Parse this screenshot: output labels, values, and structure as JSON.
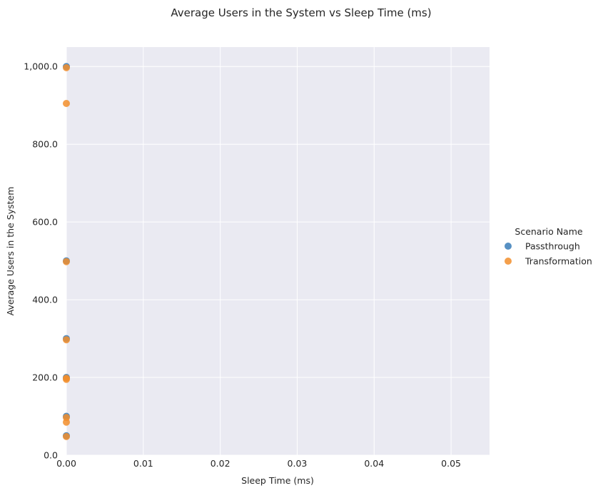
{
  "chart_data": {
    "type": "scatter",
    "title": "Average Users in the System vs Sleep Time (ms)",
    "xlabel": "Sleep Time (ms)",
    "ylabel": "Average Users in the System",
    "xlim": [
      0,
      0.055
    ],
    "ylim": [
      0,
      1050
    ],
    "x_ticks": [
      0,
      0.01,
      0.02,
      0.03,
      0.04,
      0.05
    ],
    "x_tick_labels": [
      "0.00",
      "0.01",
      "0.02",
      "0.03",
      "0.04",
      "0.05"
    ],
    "y_ticks": [
      0,
      200,
      400,
      600,
      800,
      1000
    ],
    "y_tick_labels": [
      "0.0",
      "200.0",
      "400.0",
      "600.0",
      "800.0",
      "1,000.0"
    ],
    "grid": true,
    "background": "#EAEAF2",
    "legend": {
      "title": "Scenario Name",
      "placement": "right"
    },
    "series": [
      {
        "name": "Passthrough",
        "color": "#3A7DB8",
        "points": [
          {
            "x": 0,
            "y": 50
          },
          {
            "x": 0,
            "y": 100
          },
          {
            "x": 0,
            "y": 200
          },
          {
            "x": 0,
            "y": 300
          },
          {
            "x": 0,
            "y": 500
          },
          {
            "x": 0,
            "y": 1000
          }
        ]
      },
      {
        "name": "Transformation",
        "color": "#F28E2B",
        "points": [
          {
            "x": 0,
            "y": 48
          },
          {
            "x": 0,
            "y": 85
          },
          {
            "x": 0,
            "y": 97
          },
          {
            "x": 0,
            "y": 195
          },
          {
            "x": 0,
            "y": 198
          },
          {
            "x": 0,
            "y": 297
          },
          {
            "x": 0,
            "y": 498
          },
          {
            "x": 0,
            "y": 905
          },
          {
            "x": 0,
            "y": 997
          }
        ]
      }
    ]
  }
}
